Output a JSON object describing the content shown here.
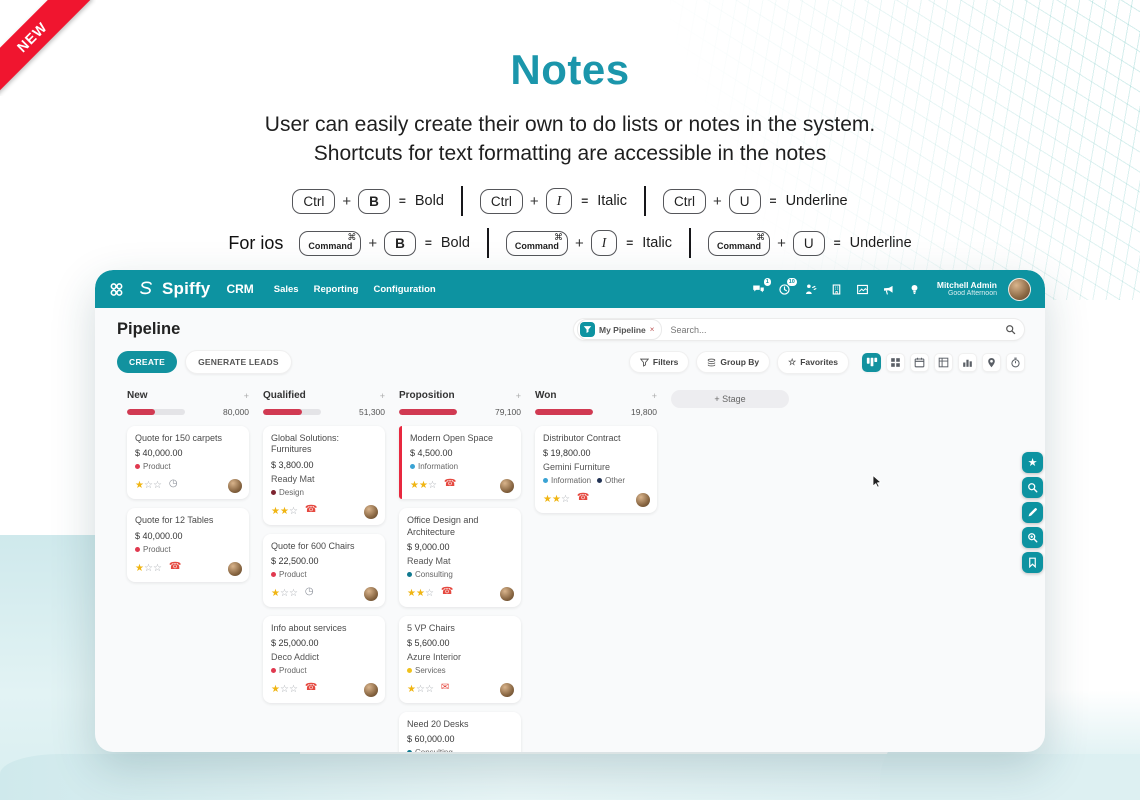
{
  "ribbon": {
    "label": "NEW"
  },
  "hero": {
    "title": "Notes",
    "desc1": "User can easily create their own to do lists or notes in the system.",
    "desc2": "Shortcuts for text formatting are accessible in the notes",
    "command_symbol": "⌘",
    "plus": "+",
    "equals": "=",
    "shortcut_rows": [
      {
        "prefix": "",
        "command_style": false,
        "groups": [
          {
            "modifier": "Ctrl",
            "key": "B",
            "result": "Bold"
          },
          {
            "modifier": "Ctrl",
            "key": "I",
            "result": "Italic"
          },
          {
            "modifier": "Ctrl",
            "key": "U",
            "result": "Underline"
          }
        ]
      },
      {
        "prefix": "For ios",
        "command_style": true,
        "groups": [
          {
            "modifier": "Command",
            "key": "B",
            "result": "Bold"
          },
          {
            "modifier": "Command",
            "key": "I",
            "result": "Italic"
          },
          {
            "modifier": "Command",
            "key": "U",
            "result": "Underline"
          }
        ]
      }
    ]
  },
  "colors": {
    "accent": "#0d93a1",
    "ribbon_red": "#f0152f",
    "progress_red": "#d13a52",
    "star_yellow": "#f0b513",
    "icon_red": "#e5483f",
    "tags": {
      "red": "#e0394f",
      "darkred": "#7d2430",
      "blue": "#3aa3d4",
      "teal": "#10798f",
      "yellow": "#efc11d",
      "navy": "#223354"
    }
  },
  "app": {
    "navbar": {
      "brand": "Spiffy",
      "module": "CRM",
      "menu": [
        "Sales",
        "Reporting",
        "Configuration"
      ],
      "badges": {
        "messages": "1",
        "activities": "10"
      },
      "nav_icons": [
        "chat",
        "clock",
        "activity",
        "building",
        "picture",
        "announcement",
        "lightbulb"
      ],
      "user_name": "Mitchell Admin",
      "greeting": "Good Afternoon"
    },
    "page": {
      "title": "Pipeline",
      "create_label": "CREATE",
      "generate_leads_label": "GENERATE LEADS",
      "filter_chip": "My Pipeline",
      "chip_remove": "×",
      "search_placeholder": "Search...",
      "filters_label": "Filters",
      "group_by_label": "Group By",
      "favorites_label": "Favorites",
      "stage_label": "+ Stage",
      "column_add": "+"
    },
    "view_switcher": [
      {
        "icon": "kanban",
        "active": true
      },
      {
        "icon": "list",
        "active": false
      },
      {
        "icon": "calendar",
        "active": false
      },
      {
        "icon": "pivot",
        "active": false
      },
      {
        "icon": "graph",
        "active": false
      },
      {
        "icon": "map",
        "active": false
      },
      {
        "icon": "stopwatch",
        "active": false
      }
    ],
    "fabs": [
      "star",
      "search",
      "edit",
      "zoom-in",
      "bookmark"
    ],
    "columns": [
      {
        "name": "New",
        "amount": "80,000",
        "progress": 48,
        "cards": [
          {
            "title": "Quote for 150 carpets",
            "amount": "$ 40,000.00",
            "company": "",
            "tags": [
              {
                "label": "Product",
                "color": "red"
              }
            ],
            "stars": 1,
            "activity": "clock",
            "highlight": false
          },
          {
            "title": "Quote for 12 Tables",
            "amount": "$ 40,000.00",
            "company": "",
            "tags": [
              {
                "label": "Product",
                "color": "red"
              }
            ],
            "stars": 1,
            "activity": "phone",
            "highlight": false
          }
        ]
      },
      {
        "name": "Qualified",
        "amount": "51,300",
        "progress": 67,
        "cards": [
          {
            "title": "Global Solutions: Furnitures",
            "amount": "$ 3,800.00",
            "company": "Ready Mat",
            "tags": [
              {
                "label": "Design",
                "color": "darkred"
              }
            ],
            "stars": 2,
            "activity": "phone",
            "highlight": false
          },
          {
            "title": "Quote for 600 Chairs",
            "amount": "$ 22,500.00",
            "company": "",
            "tags": [
              {
                "label": "Product",
                "color": "red"
              }
            ],
            "stars": 1,
            "activity": "clock",
            "highlight": false
          },
          {
            "title": "Info about services",
            "amount": "$ 25,000.00",
            "company": "Deco Addict",
            "tags": [
              {
                "label": "Product",
                "color": "red"
              }
            ],
            "stars": 1,
            "activity": "phone",
            "highlight": false
          }
        ]
      },
      {
        "name": "Proposition",
        "amount": "79,100",
        "progress": 100,
        "cards": [
          {
            "title": "Modern Open Space",
            "amount": "$ 4,500.00",
            "company": "",
            "tags": [
              {
                "label": "Information",
                "color": "blue"
              }
            ],
            "stars": 2,
            "activity": "phone",
            "highlight": true
          },
          {
            "title": "Office Design and Architecture",
            "amount": "$ 9,000.00",
            "company": "Ready Mat",
            "tags": [
              {
                "label": "Consulting",
                "color": "teal"
              }
            ],
            "stars": 2,
            "activity": "phone",
            "highlight": false
          },
          {
            "title": "5 VP Chairs",
            "amount": "$ 5,600.00",
            "company": "Azure Interior",
            "tags": [
              {
                "label": "Services",
                "color": "yellow"
              }
            ],
            "stars": 1,
            "activity": "envelope",
            "highlight": false
          },
          {
            "title": "Need 20 Desks",
            "amount": "$ 60,000.00",
            "company": "",
            "tags": [
              {
                "label": "Consulting",
                "color": "teal"
              }
            ],
            "stars": 0,
            "activity": "envelope",
            "highlight": false
          }
        ]
      },
      {
        "name": "Won",
        "amount": "19,800",
        "progress": 100,
        "cards": [
          {
            "title": "Distributor Contract",
            "amount": "$ 19,800.00",
            "company": "Gemini Furniture",
            "tags": [
              {
                "label": "Information",
                "color": "blue"
              },
              {
                "label": "Other",
                "color": "navy"
              }
            ],
            "stars": 2,
            "activity": "phone",
            "highlight": false
          }
        ]
      }
    ]
  }
}
